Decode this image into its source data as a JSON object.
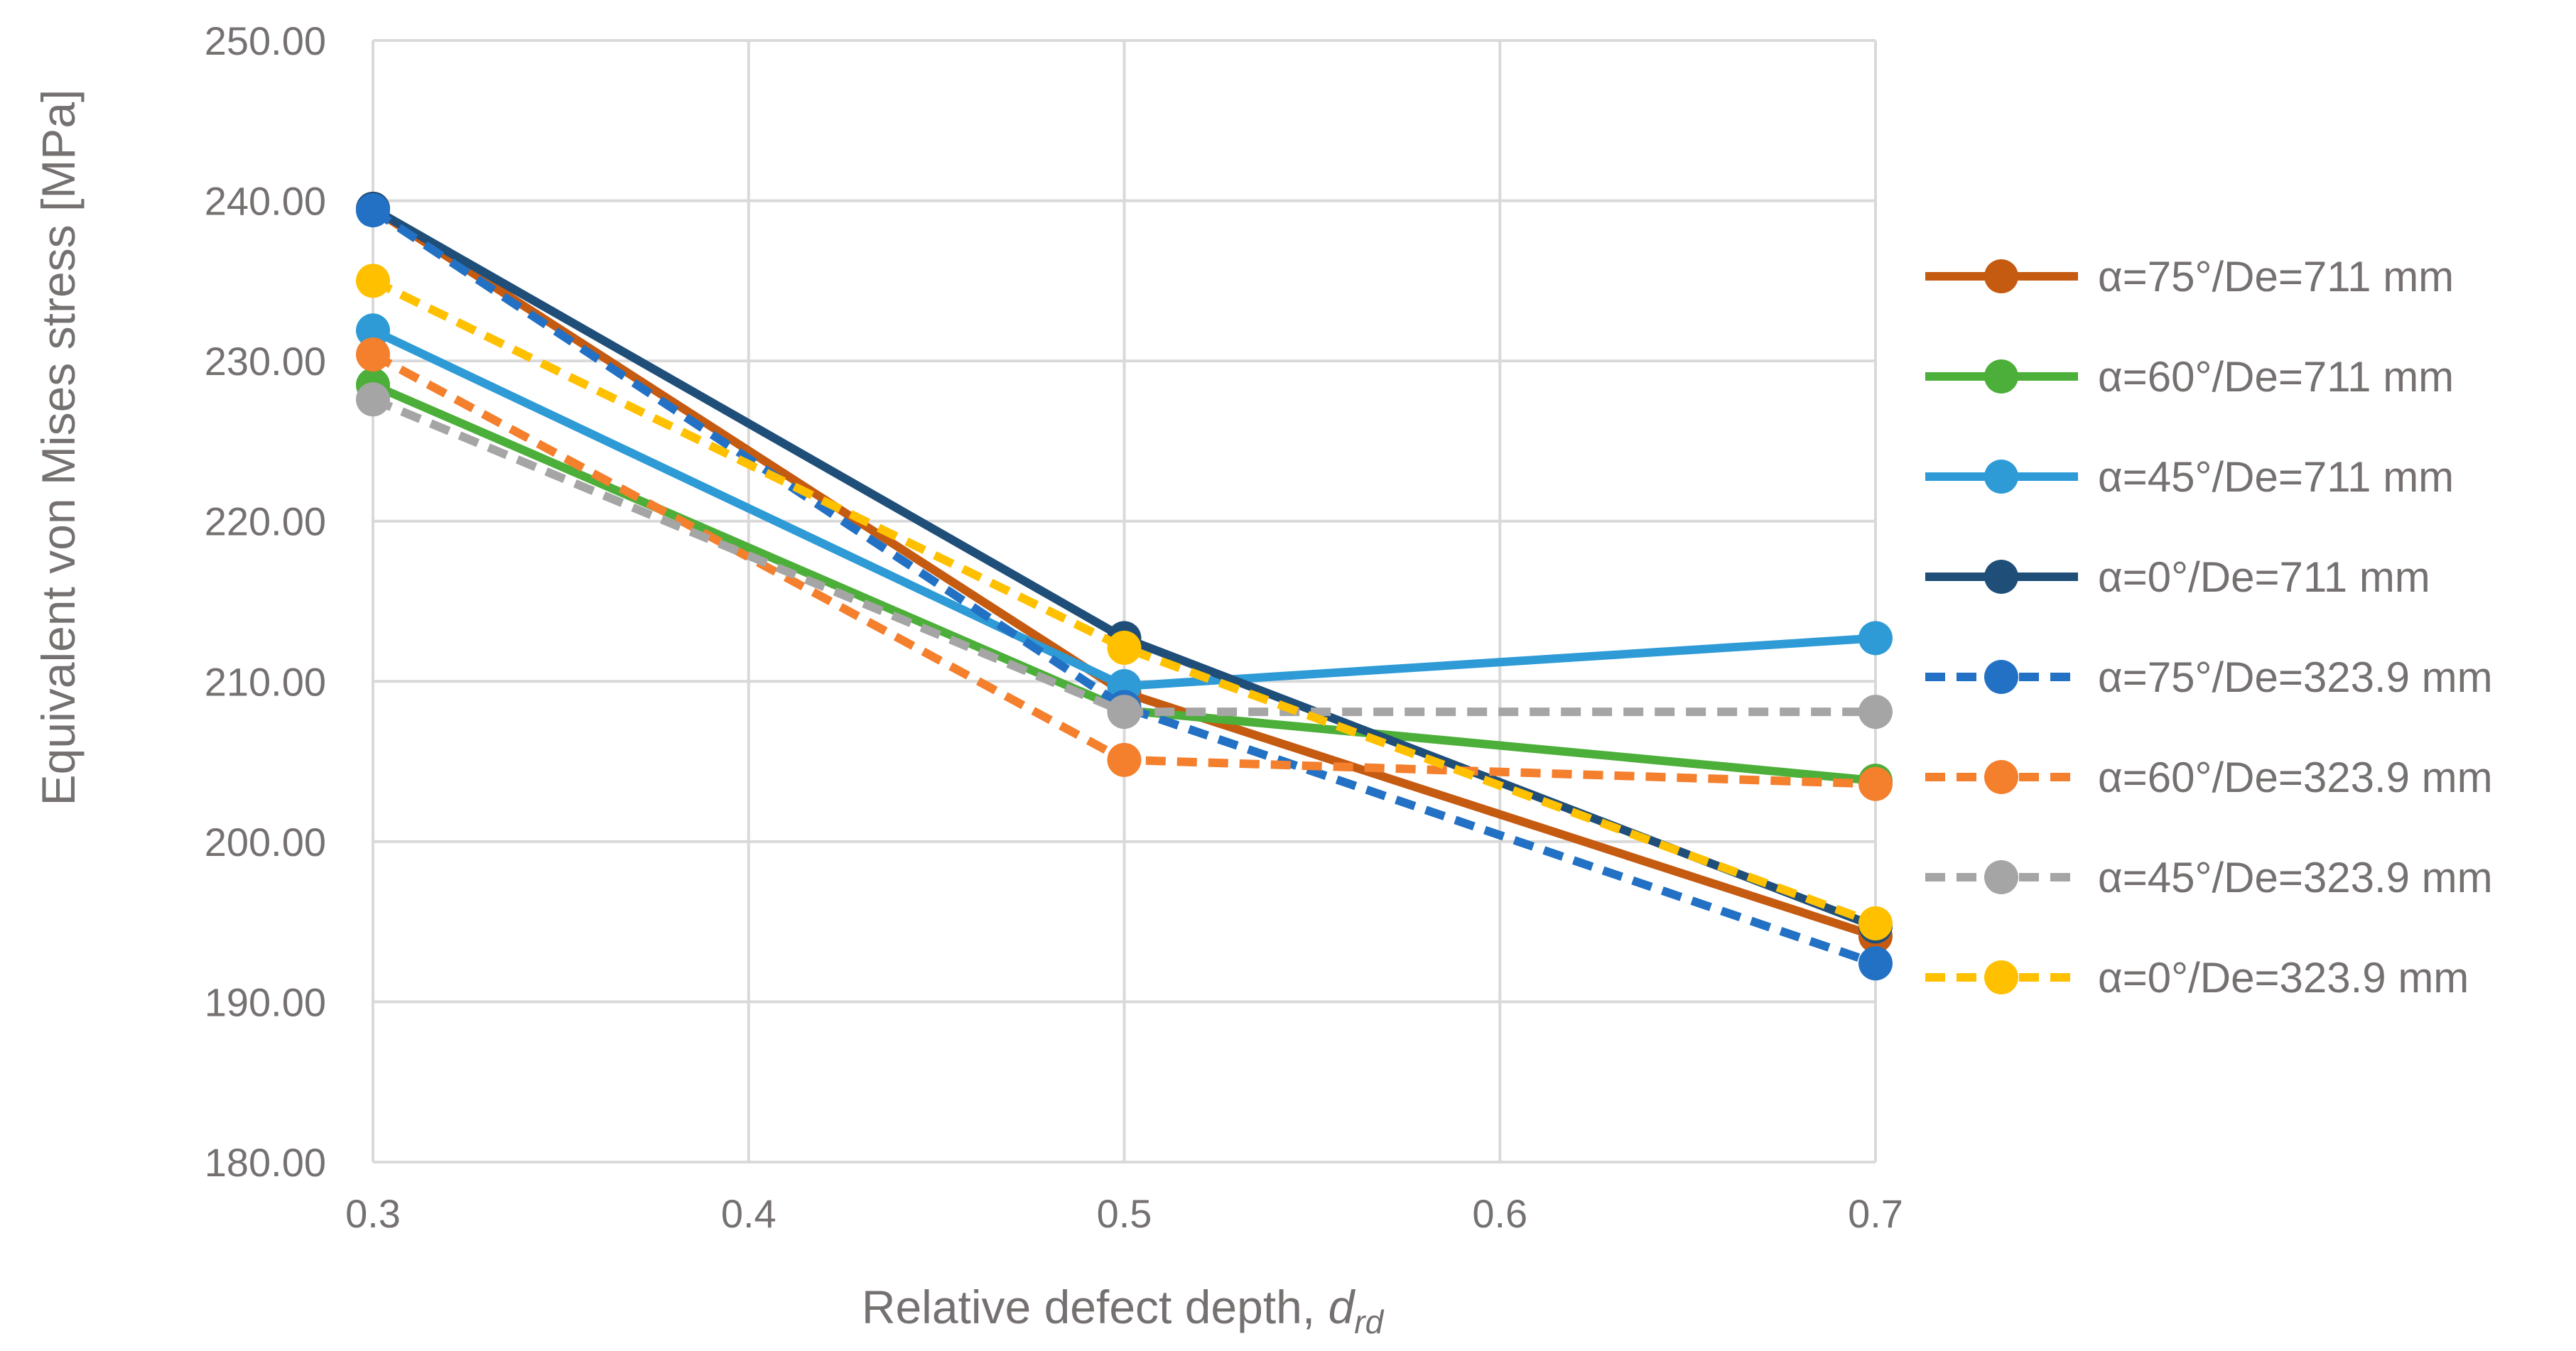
{
  "chart_data": {
    "type": "line",
    "title": "",
    "xlabel": "Relative defect depth, ",
    "xlabel_subscript": "d",
    "xlabel_subscript_index": "rd",
    "ylabel": "Equivalent von Mises stress [MPa]",
    "x": [
      0.3,
      0.5,
      0.7
    ],
    "xlim": [
      0.3,
      0.7
    ],
    "ylim": [
      180,
      250
    ],
    "xticks": [
      0.3,
      0.4,
      0.5,
      0.6,
      0.7
    ],
    "xtick_labels": [
      "0.3",
      "0.4",
      "0.5",
      "0.6",
      "0.7"
    ],
    "yticks": [
      180,
      190,
      200,
      210,
      220,
      230,
      240,
      250
    ],
    "ytick_labels": [
      "180.00",
      "190.00",
      "200.00",
      "210.00",
      "220.00",
      "230.00",
      "240.00",
      "250.00"
    ],
    "grid": true,
    "legend_position": "right",
    "series": [
      {
        "name": "α=75°/De=711 mm",
        "color": "#C55A11",
        "dash": "solid",
        "values": [
          239.5,
          209.3,
          194.1
        ]
      },
      {
        "name": "α=60°/De=711 mm",
        "color": "#4CAF39",
        "dash": "solid",
        "values": [
          228.5,
          208.2,
          203.8
        ]
      },
      {
        "name": "α=45°/De=711 mm",
        "color": "#2E9BD6",
        "dash": "solid",
        "values": [
          231.9,
          209.7,
          212.7
        ]
      },
      {
        "name": "α=0°/De=711 mm",
        "color": "#1F4E79",
        "dash": "solid",
        "values": [
          239.5,
          212.7,
          194.7
        ]
      },
      {
        "name": "α=75°/De=323.9 mm",
        "color": "#2271C4",
        "dash": "dashed",
        "values": [
          239.4,
          208.4,
          192.4
        ]
      },
      {
        "name": "α=60°/De=323.9 mm",
        "color": "#F47F2D",
        "dash": "dashed",
        "values": [
          230.4,
          205.1,
          203.6
        ]
      },
      {
        "name": "α=45°/De=323.9 mm",
        "color": "#A5A5A5",
        "dash": "dashed",
        "values": [
          227.6,
          208.1,
          208.1
        ]
      },
      {
        "name": "α=0°/De=323.9 mm",
        "color": "#FFC000",
        "dash": "dashed",
        "values": [
          235.0,
          212.1,
          194.9
        ]
      }
    ]
  }
}
